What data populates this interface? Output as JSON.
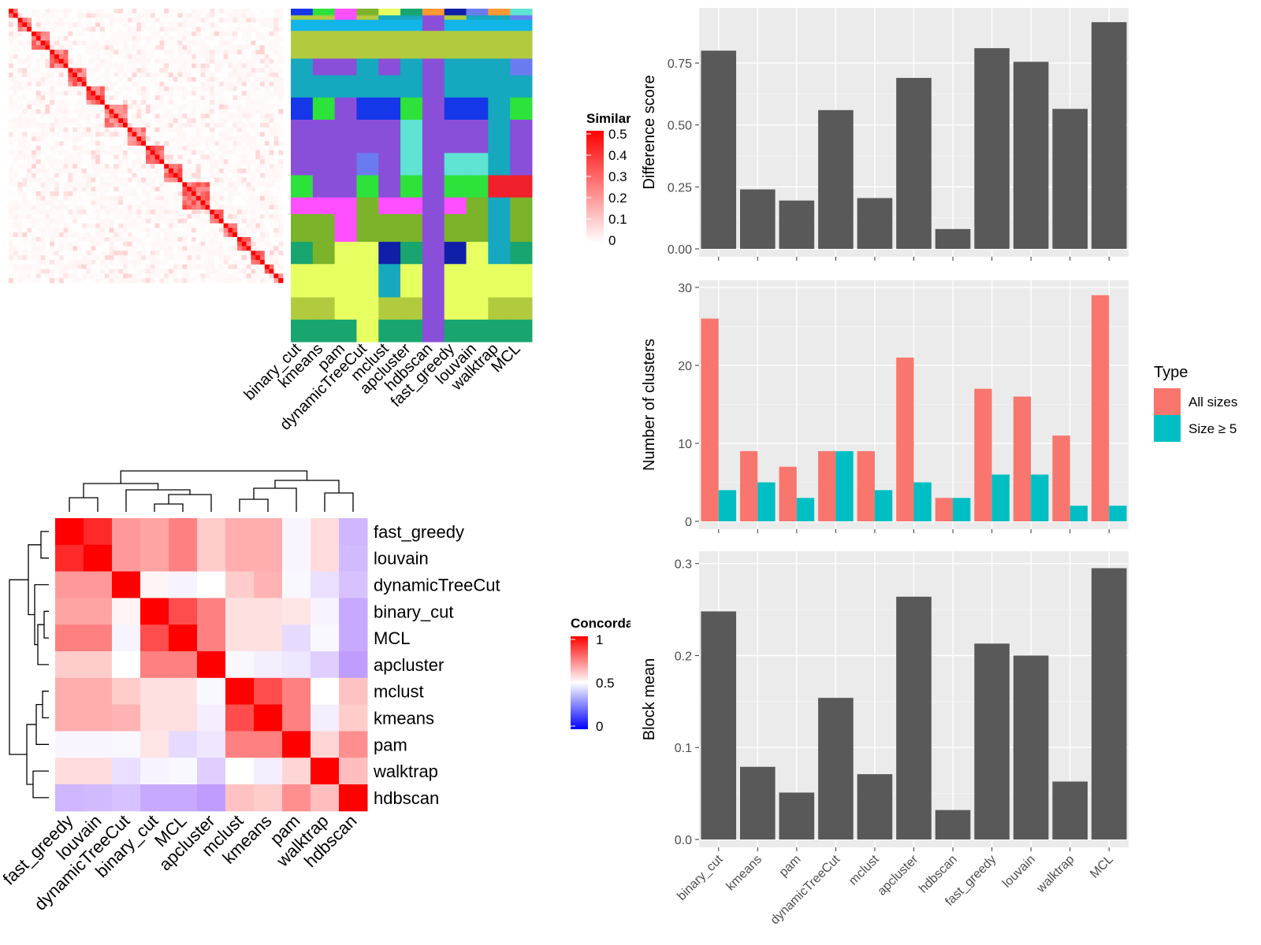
{
  "colors": {
    "panel_bg": "#ebebeb",
    "grid": "#ffffff",
    "bar_dark": "#595959",
    "all_sizes": "#f8766d",
    "size_ge5": "#00bfc4",
    "heat_red": "#ff0000",
    "heat_white": "#ffffff",
    "heat_blue": "#0000ff",
    "axis_text": "#4d4d4d"
  },
  "similarity_heatmap": {
    "legend_title": "Similarity",
    "legend_ticks": [
      "0.5",
      "0.4",
      "0.3",
      "0.2",
      "0.1",
      "0"
    ],
    "annotation_columns": [
      "binary_cut",
      "kmeans",
      "pam",
      "dynamicTreeCut",
      "mclust",
      "apcluster",
      "hdbscan",
      "fast_greedy",
      "louvain",
      "walktrap",
      "MCL"
    ]
  },
  "concordance_heatmap": {
    "legend_title": "Concordance",
    "legend_ticks": [
      "1",
      "0.5",
      "0"
    ],
    "methods": [
      "fast_greedy",
      "louvain",
      "dynamicTreeCut",
      "binary_cut",
      "MCL",
      "apcluster",
      "mclust",
      "kmeans",
      "pam",
      "walktrap",
      "hdbscan"
    ],
    "matrix": [
      [
        1.0,
        0.92,
        0.7,
        0.68,
        0.75,
        0.6,
        0.66,
        0.66,
        0.46,
        0.57,
        0.2
      ],
      [
        0.92,
        1.0,
        0.7,
        0.68,
        0.75,
        0.6,
        0.66,
        0.66,
        0.46,
        0.57,
        0.22
      ],
      [
        0.7,
        0.7,
        1.0,
        0.52,
        0.45,
        0.5,
        0.6,
        0.65,
        0.47,
        0.37,
        0.25
      ],
      [
        0.68,
        0.68,
        0.52,
        1.0,
        0.85,
        0.75,
        0.56,
        0.56,
        0.55,
        0.45,
        0.15
      ],
      [
        0.75,
        0.75,
        0.45,
        0.85,
        1.0,
        0.75,
        0.56,
        0.56,
        0.35,
        0.47,
        0.15
      ],
      [
        0.6,
        0.6,
        0.5,
        0.75,
        0.75,
        1.0,
        0.47,
        0.43,
        0.4,
        0.3,
        0.1
      ],
      [
        0.66,
        0.66,
        0.6,
        0.56,
        0.56,
        0.47,
        1.0,
        0.85,
        0.75,
        0.5,
        0.62
      ],
      [
        0.66,
        0.66,
        0.65,
        0.56,
        0.56,
        0.43,
        0.85,
        1.0,
        0.75,
        0.43,
        0.6
      ],
      [
        0.46,
        0.46,
        0.47,
        0.55,
        0.35,
        0.4,
        0.75,
        0.75,
        1.0,
        0.58,
        0.72
      ],
      [
        0.57,
        0.57,
        0.37,
        0.45,
        0.47,
        0.3,
        0.5,
        0.43,
        0.58,
        1.0,
        0.63
      ],
      [
        0.2,
        0.22,
        0.25,
        0.15,
        0.15,
        0.1,
        0.62,
        0.6,
        0.72,
        0.63,
        1.0
      ]
    ]
  },
  "chart_data": [
    {
      "type": "bar",
      "ylabel": "Difference score",
      "categories": [
        "binary_cut",
        "kmeans",
        "pam",
        "dynamicTreeCut",
        "mclust",
        "apcluster",
        "hdbscan",
        "fast_greedy",
        "louvain",
        "walktrap",
        "MCL"
      ],
      "values": [
        0.8,
        0.24,
        0.195,
        0.56,
        0.205,
        0.69,
        0.08,
        0.81,
        0.755,
        0.565,
        0.915
      ],
      "ylim": [
        0,
        0.96
      ],
      "yticks": [
        0,
        0.25,
        0.5,
        0.75
      ],
      "ytick_labels": [
        "0.00",
        "0.25",
        "0.50",
        "0.75"
      ],
      "grid": true
    },
    {
      "type": "bar",
      "ylabel": "Number of clusters",
      "categories": [
        "binary_cut",
        "kmeans",
        "pam",
        "dynamicTreeCut",
        "mclust",
        "apcluster",
        "hdbscan",
        "fast_greedy",
        "louvain",
        "walktrap",
        "MCL"
      ],
      "series": [
        {
          "name": "All sizes",
          "values": [
            26,
            9,
            7,
            9,
            9,
            21,
            3,
            17,
            16,
            11,
            29
          ]
        },
        {
          "name": "Size ≥ 5",
          "values": [
            4,
            5,
            3,
            9,
            4,
            5,
            3,
            6,
            6,
            2,
            2
          ]
        }
      ],
      "ylim": [
        0,
        30.5
      ],
      "yticks": [
        0,
        10,
        20,
        30
      ],
      "ytick_labels": [
        "0",
        "10",
        "20",
        "30"
      ],
      "legend_title": "Type",
      "legend_position": "right",
      "grid": true
    },
    {
      "type": "bar",
      "ylabel": "Block mean",
      "categories": [
        "binary_cut",
        "kmeans",
        "pam",
        "dynamicTreeCut",
        "mclust",
        "apcluster",
        "hdbscan",
        "fast_greedy",
        "louvain",
        "walktrap",
        "MCL"
      ],
      "values": [
        0.248,
        0.079,
        0.051,
        0.154,
        0.071,
        0.264,
        0.032,
        0.213,
        0.2,
        0.063,
        0.295
      ],
      "ylim": [
        0,
        0.31
      ],
      "yticks": [
        0,
        0.1,
        0.2,
        0.3
      ],
      "ytick_labels": [
        "0.0",
        "0.1",
        "0.2",
        "0.3"
      ],
      "grid": true
    }
  ]
}
